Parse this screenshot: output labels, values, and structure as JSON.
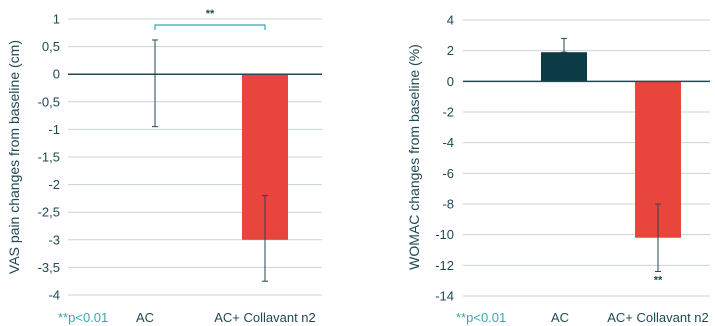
{
  "chart_data": [
    {
      "type": "bar",
      "title": "",
      "ylabel": "VAS pain changes from baseline (cm)",
      "xlabel": "",
      "categories": [
        "AC",
        "AC+ Collavant n2"
      ],
      "values": [
        0,
        -3
      ],
      "error_low": [
        -0.95,
        -3.75
      ],
      "error_high": [
        0.62,
        -2.2
      ],
      "colors": [
        "#0d3b45",
        "#e8453c"
      ],
      "ylim": [
        -4,
        1
      ],
      "yticks": [
        1,
        0.5,
        0,
        -0.5,
        -1,
        -1.5,
        -2,
        -2.5,
        -3,
        -3.5,
        -4
      ],
      "ytick_labels": [
        "1",
        "0,5",
        "0",
        "-0,5",
        "-1",
        "-1,5",
        "-2",
        "-2,5",
        "-3",
        "-3,5",
        "-4"
      ],
      "significance_bracket": {
        "text": "**",
        "between": [
          "AC",
          "AC+ Collavant n2"
        ]
      },
      "footnote": "**p<0.01",
      "grid": true
    },
    {
      "type": "bar",
      "title": "",
      "ylabel": "WOMAC changes from baseline (%)",
      "xlabel": "",
      "categories": [
        "AC",
        "AC+ Collavant n2"
      ],
      "values": [
        1.9,
        -10.2
      ],
      "error_low": [
        1.9,
        -12.4
      ],
      "error_high": [
        2.8,
        -8.0
      ],
      "colors": [
        "#0d3b45",
        "#e8453c"
      ],
      "ylim": [
        -14,
        4
      ],
      "yticks": [
        4,
        2,
        0,
        -2,
        -4,
        -6,
        -8,
        -10,
        -12,
        -14
      ],
      "ytick_labels": [
        "4",
        "2",
        "0",
        "-2",
        "-4",
        "-6",
        "-8",
        "-10",
        "-12",
        "-14"
      ],
      "significance_marker": {
        "text": "**",
        "category": "AC+ Collavant n2"
      },
      "footnote": "**p<0.01",
      "grid": true
    }
  ]
}
